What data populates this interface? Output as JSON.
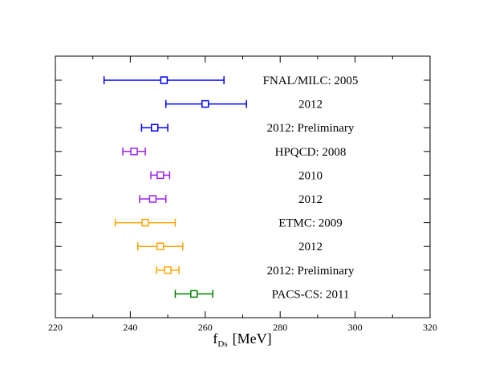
{
  "chart_data": {
    "type": "scatter",
    "title": "",
    "xlabel": "f",
    "xlabel_subscript": "Ds",
    "xlabel_unit": "[MeV]",
    "ylabel": "",
    "xlim": [
      220,
      320
    ],
    "x_ticks": [
      "220",
      "240",
      "260",
      "280",
      "300",
      "320"
    ],
    "grid": false,
    "legend": "none",
    "points": [
      {
        "label": "FNAL/MILC: 2005",
        "value": 249,
        "err_low": 233,
        "err_high": 265,
        "color": "#0000ff"
      },
      {
        "label": "2012",
        "value": 260,
        "err_low": 249.5,
        "err_high": 271,
        "color": "#0000ff"
      },
      {
        "label": "2012: Preliminary",
        "value": 246.5,
        "err_low": 243,
        "err_high": 250,
        "color": "#0000ff"
      },
      {
        "label": "HPQCD: 2008",
        "value": 241,
        "err_low": 238,
        "err_high": 244,
        "color": "#a020f0"
      },
      {
        "label": "2010",
        "value": 248,
        "err_low": 245.5,
        "err_high": 250.5,
        "color": "#a020f0"
      },
      {
        "label": "2012",
        "value": 246,
        "err_low": 242.5,
        "err_high": 249.5,
        "color": "#a020f0"
      },
      {
        "label": "ETMC: 2009",
        "value": 244,
        "err_low": 236,
        "err_high": 252,
        "color": "#ffa500"
      },
      {
        "label": "2012",
        "value": 248,
        "err_low": 242,
        "err_high": 254,
        "color": "#ffa500"
      },
      {
        "label": "2012: Preliminary",
        "value": 250,
        "err_low": 247,
        "err_high": 253,
        "color": "#ffa500"
      },
      {
        "label": "PACS-CS: 2011",
        "value": 257,
        "err_low": 252,
        "err_high": 262,
        "color": "#008000"
      }
    ]
  }
}
